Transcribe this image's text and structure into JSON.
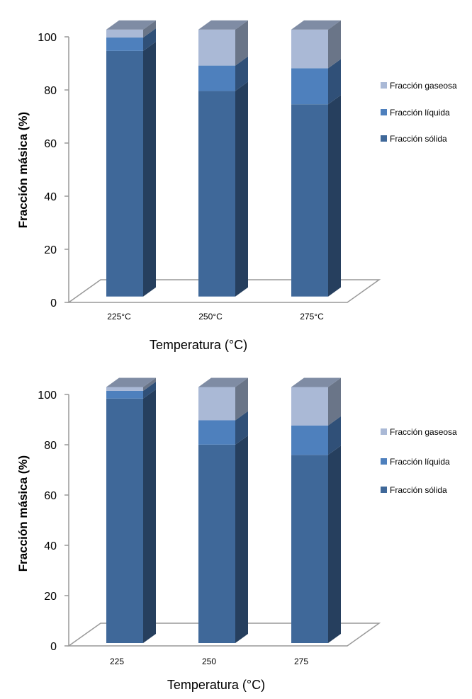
{
  "chart_data": [
    {
      "type": "bar",
      "stacked": true,
      "three_d": true,
      "categories": [
        "225°C",
        "250°C",
        "275°C"
      ],
      "series": [
        {
          "name": "Fracción sólida",
          "values": [
            92,
            77,
            72
          ],
          "color": "#3f6899"
        },
        {
          "name": "Fracción líquida",
          "values": [
            5,
            9.5,
            13.5
          ],
          "color": "#4e80bd"
        },
        {
          "name": "Fracción gaseosa",
          "values": [
            3,
            13.5,
            14.5
          ],
          "color": "#aab9d6"
        }
      ],
      "xlabel": "Temperatura (°C)",
      "ylabel": "Fracción másica (%)",
      "ylim": [
        0,
        100
      ],
      "yticks": [
        "0",
        "20",
        "40",
        "60",
        "80",
        "100"
      ],
      "legend": "right",
      "grid": false
    },
    {
      "type": "bar",
      "stacked": true,
      "three_d": true,
      "categories": [
        "225",
        "250",
        "275"
      ],
      "series": [
        {
          "name": "Fracción sólida",
          "values": [
            95.5,
            77.5,
            73.5
          ],
          "color": "#3f6899"
        },
        {
          "name": "Fracción líquida",
          "values": [
            3,
            9.5,
            11.5
          ],
          "color": "#4e80bd"
        },
        {
          "name": "Fracción gaseosa",
          "values": [
            1.5,
            13,
            15
          ],
          "color": "#aab9d6"
        }
      ],
      "xlabel": "Temperatura (°C)",
      "ylabel": "Fracción másica (%)",
      "ylim": [
        0,
        100
      ],
      "yticks": [
        "0",
        "20",
        "40",
        "60",
        "80",
        "100"
      ],
      "legend": "right",
      "grid": false
    }
  ]
}
